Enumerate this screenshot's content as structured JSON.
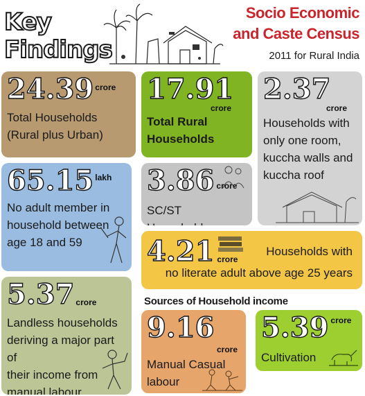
{
  "header": {
    "key_line1": "Key",
    "key_line2": "Findings",
    "census_line1": "Socio Economic",
    "census_line2": "and Caste Census",
    "census_sub": "2011 for Rural India"
  },
  "cards": {
    "total_households": {
      "value": "24.39",
      "unit": "crore",
      "desc1": "Total Households",
      "desc2": "(Rural plus Urban)"
    },
    "rural_households": {
      "value": "17.91",
      "unit": "crore",
      "desc1": "Total Rural",
      "desc2": "Households"
    },
    "one_room": {
      "value": "2.37",
      "unit": "crore",
      "desc1": "Households with",
      "desc2": "only one room,",
      "desc3": "kuccha walls and",
      "desc4": "kuccha roof"
    },
    "no_adult_member": {
      "value": "65.15",
      "unit": "lakh",
      "desc1": "No adult member in",
      "desc2": "household between",
      "desc3": "age 18 and 59"
    },
    "scst": {
      "value": "3.86",
      "unit": "crore",
      "desc1": "SC/ST Households"
    },
    "no_literate": {
      "value": "4.21",
      "unit": "crore",
      "desc1": "Households with",
      "desc2": "no literate adult above age 25 years"
    },
    "landless": {
      "value": "5.37",
      "unit": "crore",
      "desc1": "Landless households",
      "desc2": "deriving a major part of",
      "desc3": "their income from",
      "desc4": "manual labour"
    },
    "manual_casual": {
      "value": "9.16",
      "unit": "crore",
      "desc1": "Manual Casual",
      "desc2": "labour"
    },
    "cultivation": {
      "value": "5.39",
      "unit": "crore",
      "desc1": "Cultivation"
    }
  },
  "section": {
    "income_label": "Sources of Household income"
  }
}
